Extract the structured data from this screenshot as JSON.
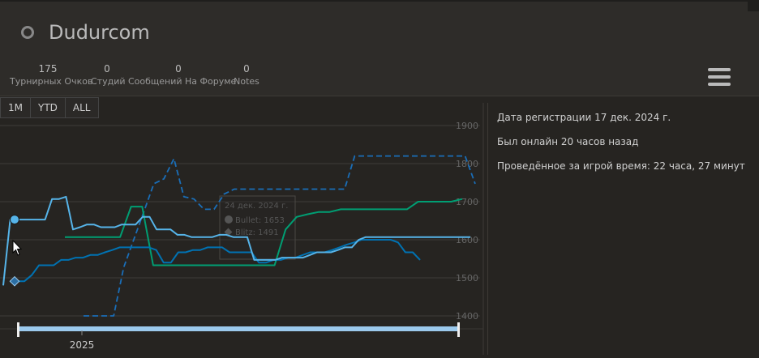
{
  "user": {
    "name": "Dudurcom"
  },
  "stats": [
    {
      "value": "175",
      "label": "Турнирных Очков"
    },
    {
      "value": "0",
      "label": "Студий"
    },
    {
      "value": "0",
      "label": "Сообщений На Форуме"
    },
    {
      "value": "0",
      "label": "Notes"
    }
  ],
  "range_buttons": [
    "1M",
    "YTD",
    "ALL"
  ],
  "info": {
    "registered": "Дата регистрации 17 дек. 2024 г.",
    "last_seen": "Был онлайн 20 часов назад",
    "playtime": "Проведённое за игрой время: 22 часа, 27 минут"
  },
  "tooltip": {
    "date": "24 дек. 2024 г.",
    "bullet": "Bullet: 1653",
    "blitz": "Blitz: 1491"
  },
  "colors": {
    "bullet": "#56b4e9",
    "blitz": "#0072b2",
    "rapid": "#009e73",
    "classical": "#1a6eb8",
    "navigator": "#9bc9ec"
  },
  "chart_data": {
    "type": "line",
    "y_ticks": [
      "1900",
      "1800",
      "1700",
      "1600",
      "1500",
      "1400"
    ],
    "ylim": [
      1400,
      1900
    ],
    "x_tick_labels": [
      "2025"
    ],
    "series": [
      {
        "key": "bullet",
        "style": "solid",
        "values": [
          1480,
          1653,
          1653,
          1653,
          1653,
          1653,
          1653,
          1707,
          1707,
          1713,
          1627,
          1633,
          1640,
          1640,
          1633,
          1633,
          1633,
          1640,
          1640,
          1640,
          1660,
          1660,
          1627,
          1627,
          1627,
          1613,
          1613,
          1607,
          1607,
          1607,
          1607,
          1613,
          1613,
          1607,
          1607,
          1607,
          1547,
          1547,
          1547,
          1547,
          1553,
          1553,
          1553,
          1553,
          1560,
          1567,
          1567,
          1567,
          1573,
          1580,
          1580,
          1600,
          1607,
          1607,
          1607,
          1607,
          1607,
          1607,
          1607,
          1607,
          1607,
          1607,
          1607,
          1607,
          1607,
          1607,
          1607,
          1607
        ]
      },
      {
        "key": "blitz",
        "style": "solid",
        "values": [
          1491,
          1491,
          1491,
          1507,
          1533,
          1533,
          1533,
          1547,
          1547,
          1553,
          1553,
          1560,
          1560,
          1567,
          1573,
          1580,
          1580,
          1580,
          1580,
          1580,
          1573,
          1540,
          1540,
          1567,
          1567,
          1573,
          1573,
          1580,
          1580,
          1580,
          1567,
          1567,
          1567,
          1567,
          1540,
          1540,
          1547,
          1547,
          1553,
          1553,
          1560,
          1567,
          1567,
          1567,
          1573,
          1580,
          1587,
          1593,
          1600,
          1600,
          1600,
          1600,
          1600,
          1593,
          1567,
          1567,
          1547
        ]
      },
      {
        "key": "rapid",
        "style": "solid",
        "values": [
          1607,
          1607,
          1607,
          1607,
          1607,
          1607,
          1687,
          1687,
          1533,
          1533,
          1533,
          1533,
          1533,
          1533,
          1533,
          1533,
          1533,
          1533,
          1533,
          1533,
          1627,
          1660,
          1667,
          1673,
          1673,
          1680,
          1680,
          1680,
          1680,
          1680,
          1680,
          1680,
          1700,
          1700,
          1700,
          1700,
          1707
        ]
      },
      {
        "key": "classical",
        "style": "dashed",
        "values": [
          1400,
          1400,
          1400,
          1400,
          1527,
          1600,
          1673,
          1747,
          1760,
          1813,
          1713,
          1707,
          1680,
          1680,
          1720,
          1733,
          1733,
          1733,
          1733,
          1733,
          1733,
          1733,
          1733,
          1733,
          1733,
          1733,
          1733,
          1820,
          1820,
          1820,
          1820,
          1820,
          1820,
          1820,
          1820,
          1820,
          1820,
          1820,
          1820,
          1747
        ]
      }
    ]
  }
}
